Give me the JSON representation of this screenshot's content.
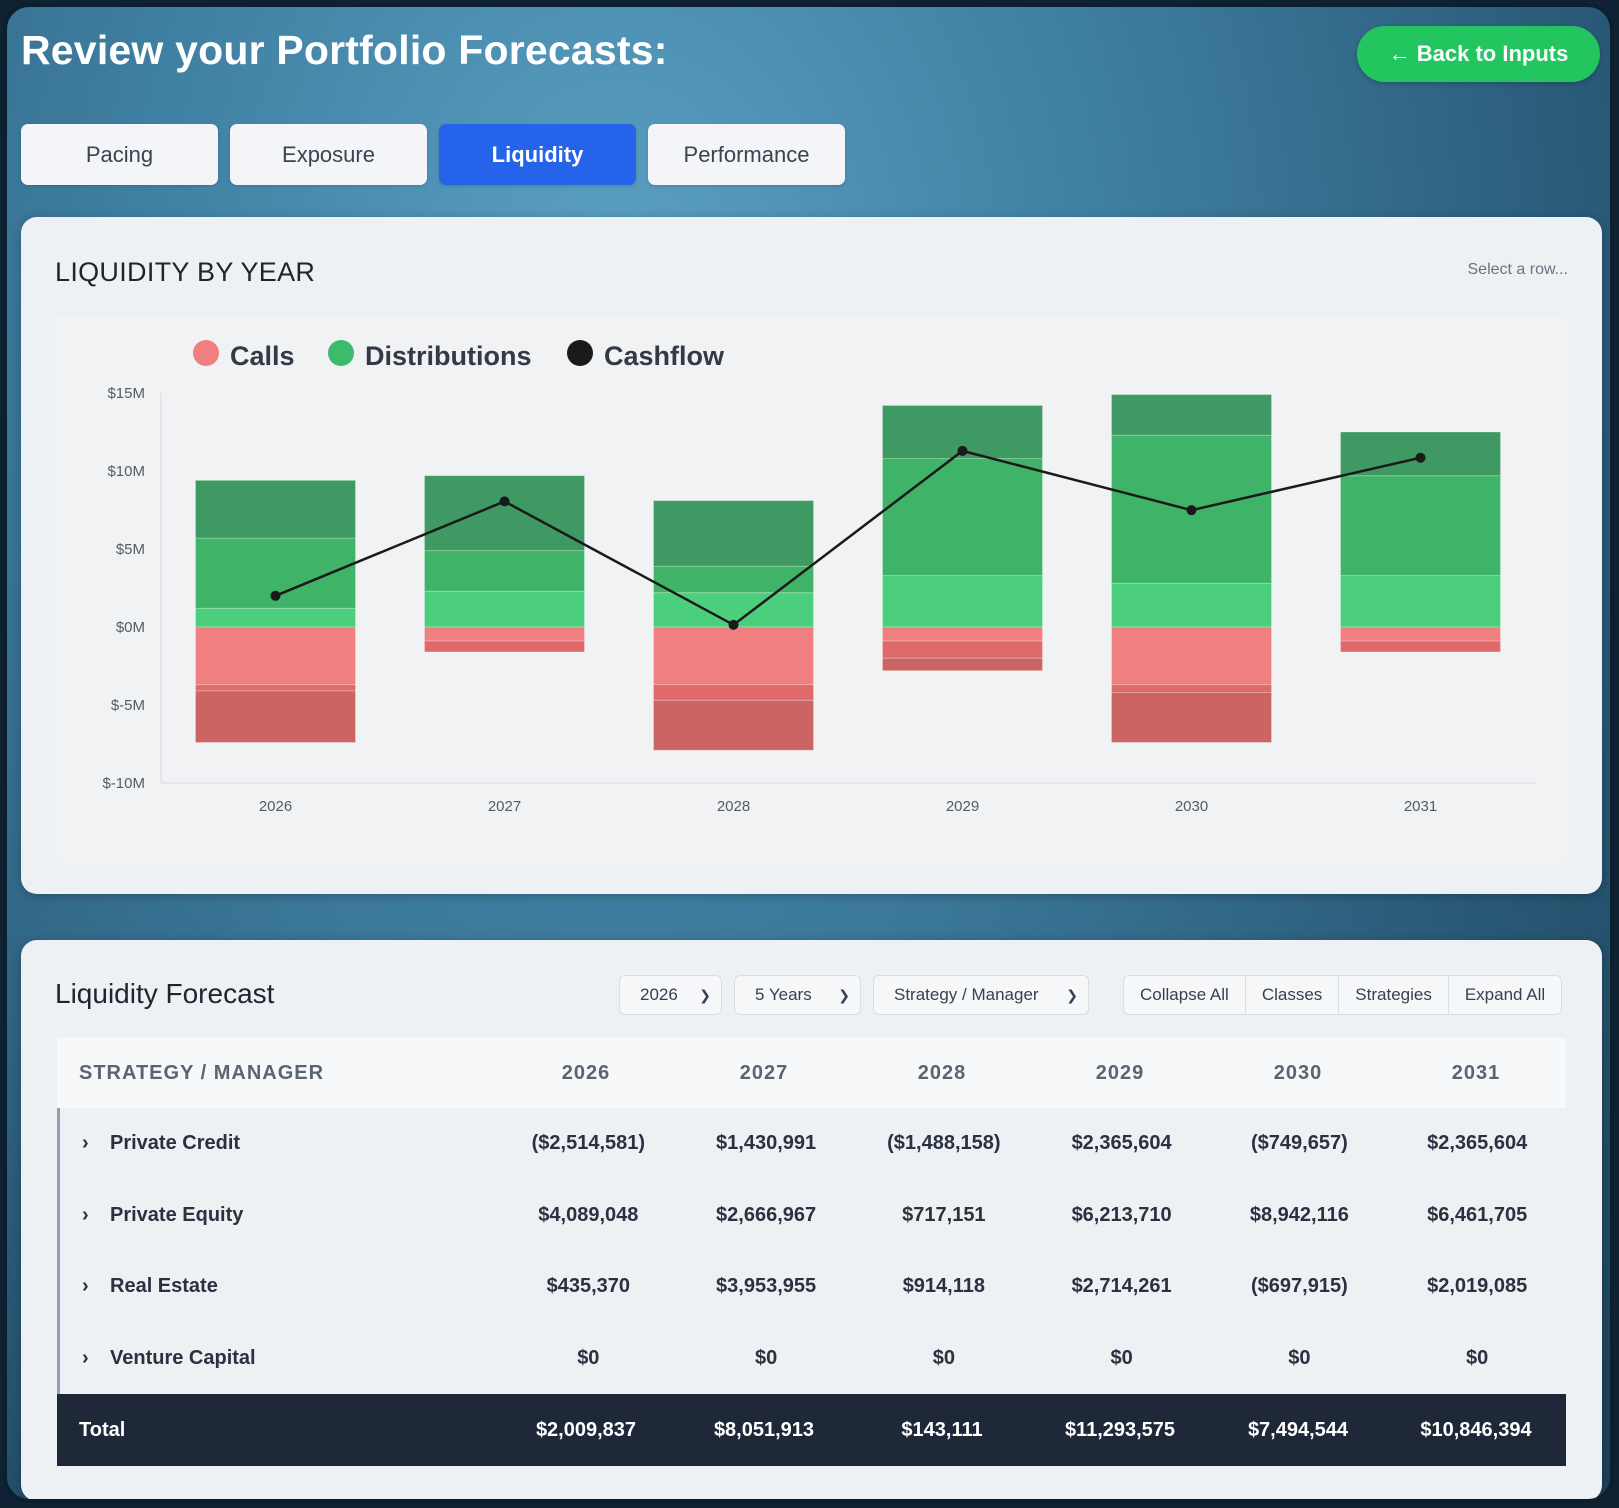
{
  "header": {
    "title": "Review your Portfolio Forecasts:",
    "back_label": "← Back to Inputs"
  },
  "tabs": [
    {
      "label": "Pacing",
      "active": false
    },
    {
      "label": "Exposure",
      "active": false
    },
    {
      "label": "Liquidity",
      "active": true
    },
    {
      "label": "Performance",
      "active": false
    }
  ],
  "chart_card": {
    "title": "LIQUIDITY BY YEAR",
    "hint": "Select a row..."
  },
  "colors": {
    "calls": "#f08080",
    "distributions": "#3dbb6c",
    "cashflow": "#1a1a1a",
    "accent": "#2563eb",
    "back_button": "#22c55e"
  },
  "chart_data": {
    "type": "bar",
    "stacked": true,
    "legend": [
      "Calls",
      "Distributions",
      "Cashflow"
    ],
    "legend_position": "top-left",
    "categories": [
      "2026",
      "2027",
      "2028",
      "2029",
      "2030",
      "2031"
    ],
    "ylim": [
      -10,
      15
    ],
    "yticks": [
      15,
      10,
      5,
      0,
      -5,
      -10
    ],
    "ytick_labels": [
      "$15M",
      "$10M",
      "$5M",
      "$0M",
      "$-5M",
      "$-10M"
    ],
    "distribution_segments": [
      [
        1.2,
        4.5,
        3.7
      ],
      [
        2.3,
        2.6,
        4.8
      ],
      [
        2.2,
        1.7,
        4.2
      ],
      [
        3.3,
        7.5,
        3.4
      ],
      [
        2.8,
        9.5,
        2.6
      ],
      [
        3.3,
        6.4,
        2.8
      ]
    ],
    "call_segments": [
      [
        -3.7,
        -0.4,
        -3.3
      ],
      [
        -0.9,
        -0.7
      ],
      [
        -3.7,
        -1.0,
        -3.2
      ],
      [
        -0.9,
        -1.1,
        -0.8
      ],
      [
        -3.7,
        -0.5,
        -3.2
      ],
      [
        -0.9,
        -0.7
      ]
    ],
    "cashflow": [
      2.0,
      8.05,
      0.14,
      11.29,
      7.49,
      10.85
    ],
    "grid": false
  },
  "table": {
    "title": "Liquidity Forecast",
    "year_select": "2026",
    "range_select": "5 Years",
    "group_select": "Strategy / Manager",
    "buttons": [
      "Collapse All",
      "Classes",
      "Strategies",
      "Expand All"
    ],
    "columns": [
      "STRATEGY / MANAGER",
      "2026",
      "2027",
      "2028",
      "2029",
      "2030",
      "2031"
    ],
    "rows": [
      {
        "name": "Private Credit",
        "values": [
          "($2,514,581)",
          "$1,430,991",
          "($1,488,158)",
          "$2,365,604",
          "($749,657)",
          "$2,365,604"
        ]
      },
      {
        "name": "Private Equity",
        "values": [
          "$4,089,048",
          "$2,666,967",
          "$717,151",
          "$6,213,710",
          "$8,942,116",
          "$6,461,705"
        ]
      },
      {
        "name": "Real Estate",
        "values": [
          "$435,370",
          "$3,953,955",
          "$914,118",
          "$2,714,261",
          "($697,915)",
          "$2,019,085"
        ]
      },
      {
        "name": "Venture Capital",
        "values": [
          "$0",
          "$0",
          "$0",
          "$0",
          "$0",
          "$0"
        ]
      }
    ],
    "total": {
      "name": "Total",
      "values": [
        "$2,009,837",
        "$8,051,913",
        "$143,111",
        "$11,293,575",
        "$7,494,544",
        "$10,846,394"
      ]
    }
  }
}
